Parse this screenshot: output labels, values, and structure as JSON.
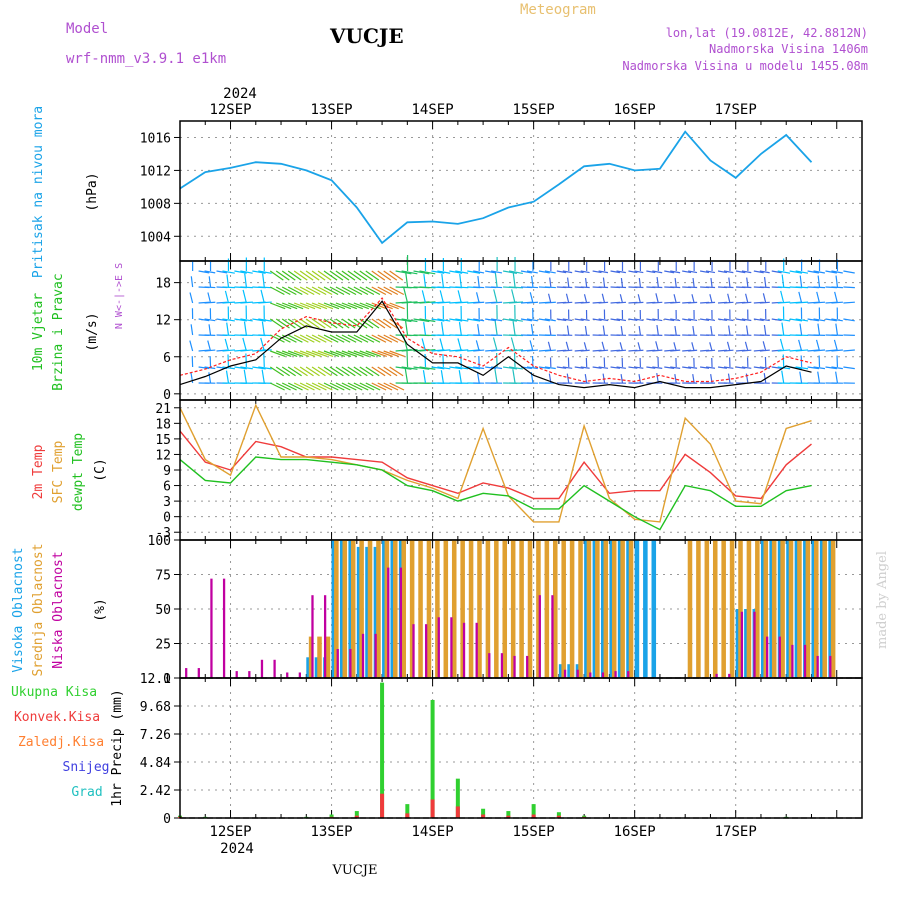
{
  "header": {
    "model_label": "Model",
    "model_name": "wrf-nmm_v3.9.1 e1km",
    "station": "VUCJE",
    "title": "Meteogram",
    "lonlat": "lon,lat (19.0812E, 42.8812N)",
    "altitude": "Nadmorska Visina 1406m",
    "model_altitude": "Nadmorska Visina u modelu 1455.08m",
    "footer_station": "VUCJE",
    "credit": "made by Angel"
  },
  "colors": {
    "pressure": "#1aa3e8",
    "speed": "#000000",
    "gust": "#ff2020",
    "t2m": "#ef3b3b",
    "tsfc": "#e0a030",
    "dewp": "#20c020",
    "cloud_high": "#1aa3e8",
    "cloud_mid": "#e0a030",
    "cloud_low": "#c000a0",
    "precip_total": "#30d030",
    "precip_conv": "#ef3b3b",
    "model_label": "#b050d0",
    "title": "#e8c070"
  },
  "chart_data": [
    {
      "type": "line",
      "name": "pressure",
      "ylabel_left": "Pritisak na nivou mora",
      "ylabel_unit": "(hPa)",
      "yticks": [
        "1004",
        "1008",
        "1012",
        "1016"
      ],
      "ylim": [
        1001,
        1018
      ],
      "x_days": [
        "12SEP",
        "13SEP",
        "14SEP",
        "15SEP",
        "16SEP",
        "17SEP"
      ],
      "top_year": "2024",
      "x_hours": [
        0,
        6,
        12,
        18,
        24,
        30,
        36,
        42,
        48,
        54,
        60,
        66,
        72,
        78,
        84,
        90,
        96,
        102,
        108,
        114,
        120,
        126,
        132,
        138,
        144,
        150
      ],
      "series": [
        {
          "values": [
            1009.8,
            1011.8,
            1012.3,
            1013.0,
            1012.8,
            1012.0,
            1010.8,
            1007.5,
            1003.2,
            1005.7,
            1005.8,
            1005.5,
            1006.2,
            1007.5,
            1008.2,
            1010.3,
            1012.5,
            1012.8,
            1012.0,
            1012.2,
            1016.7,
            1013.2,
            1011.1,
            1014.0,
            1016.3,
            1013.0
          ]
        }
      ]
    },
    {
      "type": "line",
      "name": "wind",
      "ylabel_left": "10m Vjetar Brzina i Pravac",
      "ylabel_unit": "(m/s)",
      "compass": "N  W<-|->E  S",
      "yticks": [
        "0",
        "6",
        "12",
        "18"
      ],
      "ylim": [
        -1,
        21.5
      ],
      "x_hours": [
        0,
        6,
        12,
        18,
        24,
        30,
        36,
        42,
        48,
        54,
        60,
        66,
        72,
        78,
        84,
        90,
        96,
        102,
        108,
        114,
        120,
        126,
        132,
        138,
        144,
        150
      ],
      "series": [
        {
          "values": [
            1.5,
            2.8,
            4.5,
            5.5,
            9,
            11,
            10,
            10,
            15,
            8,
            5,
            5,
            3,
            6,
            3,
            1.5,
            1,
            1.5,
            1,
            2,
            1,
            1,
            1.5,
            2,
            4.5,
            3.5
          ]
        },
        {
          "values": [
            3,
            4,
            5.5,
            6.5,
            10.5,
            12.5,
            11.5,
            11,
            15.5,
            9,
            6.5,
            6,
            4.5,
            7.5,
            4.5,
            3,
            2,
            2.5,
            2,
            3,
            2,
            2,
            2.5,
            3.5,
            6,
            5
          ]
        }
      ]
    },
    {
      "type": "line",
      "name": "temperature",
      "ylabel_left": "2m Temp SFC Temp dewpt Temp",
      "ylabel_unit": "(C)",
      "yticks": [
        "-3",
        "0",
        "3",
        "6",
        "9",
        "12",
        "15",
        "18",
        "21"
      ],
      "ylim": [
        -4.5,
        22.5
      ],
      "x_hours": [
        0,
        6,
        12,
        18,
        24,
        30,
        36,
        42,
        48,
        54,
        60,
        66,
        72,
        78,
        84,
        90,
        96,
        102,
        108,
        114,
        120,
        126,
        132,
        138,
        144,
        150
      ],
      "series": [
        {
          "values": [
            16.5,
            10.5,
            9,
            14.5,
            13.5,
            11.5,
            11.5,
            11,
            10.5,
            7.5,
            6,
            4.5,
            6.5,
            5.5,
            3.5,
            3.5,
            10.5,
            4.5,
            5,
            5,
            12,
            8.5,
            4,
            3.5,
            10,
            14
          ]
        },
        {
          "values": [
            21,
            11,
            8,
            21.5,
            11.5,
            11.5,
            11,
            10,
            9,
            7,
            5.5,
            3.5,
            17,
            4,
            -1,
            -1,
            17.5,
            3.5,
            -0.5,
            -1,
            19,
            14,
            3,
            2.5,
            17,
            18.5
          ]
        },
        {
          "values": [
            11,
            7,
            6.5,
            11.5,
            11,
            11,
            10.5,
            10,
            9,
            6,
            5,
            3,
            4.5,
            4,
            1.5,
            1.5,
            6,
            3,
            0,
            -2.5,
            6,
            5,
            2,
            2,
            5,
            6
          ]
        }
      ]
    },
    {
      "type": "bar",
      "name": "cloud",
      "ylabel_left": "Visoka Oblacnost Srednja Oblacnost Niska Oblacnost",
      "ylabel_unit": "(%)",
      "yticks": [
        "0",
        "25",
        "50",
        "75",
        "100"
      ],
      "ylim": [
        0,
        100
      ],
      "x_hours": [
        0,
        6,
        12,
        18,
        24,
        30,
        36,
        42,
        48,
        54,
        60,
        66,
        72,
        78,
        84,
        90,
        96,
        102,
        108,
        114,
        120,
        126,
        132,
        138,
        144,
        150
      ],
      "series": [
        {
          "values": [
            0,
            0,
            0,
            0,
            0,
            15,
            100,
            95,
            100,
            0,
            0,
            0,
            0,
            0,
            0,
            10,
            100,
            100,
            100,
            0,
            0,
            0,
            50,
            100,
            100,
            100
          ]
        },
        {
          "values": [
            0,
            0,
            0,
            0,
            0,
            30,
            100,
            100,
            100,
            100,
            100,
            100,
            100,
            100,
            100,
            100,
            100,
            100,
            0,
            0,
            100,
            100,
            100,
            100,
            100,
            100
          ]
        },
        {
          "values": [
            12,
            90,
            5,
            22,
            5,
            60,
            35,
            40,
            80,
            65,
            55,
            40,
            30,
            20,
            60,
            10,
            5,
            5,
            0,
            0,
            0,
            5,
            60,
            30,
            40,
            20
          ]
        }
      ]
    },
    {
      "type": "bar",
      "name": "precip",
      "ylabel_left": "1hr Precip",
      "ylabel_unit": "(mm)",
      "legend": [
        "Ukupna Kisa",
        "Konvek.Kisa",
        "Zaledj.Kisa",
        "Snijeg",
        "Grad"
      ],
      "yticks": [
        "0",
        "2.42",
        "4.84",
        "7.26",
        "9.68",
        "12.1"
      ],
      "ylim": [
        0,
        12.1
      ],
      "x_days_bottom": [
        "12SEP",
        "13SEP",
        "14SEP",
        "15SEP",
        "16SEP",
        "17SEP"
      ],
      "bottom_year": "2024",
      "x_hours": [
        0,
        6,
        12,
        18,
        24,
        30,
        36,
        42,
        48,
        54,
        60,
        66,
        72,
        78,
        84,
        90,
        96,
        102,
        108,
        114,
        120,
        126,
        132,
        138,
        144,
        150
      ],
      "series": [
        {
          "values": [
            0.2,
            0.1,
            0,
            0,
            0,
            0.1,
            0.3,
            0.6,
            11.7,
            1.2,
            10.2,
            3.4,
            0.8,
            0.6,
            1.2,
            0.5,
            0.2,
            0,
            0,
            0,
            0,
            0,
            0,
            0,
            0.1,
            0
          ]
        },
        {
          "values": [
            0.1,
            0,
            0,
            0,
            0,
            0,
            0.1,
            0.2,
            2.1,
            0.4,
            1.6,
            1.0,
            0.3,
            0.2,
            0.3,
            0.2,
            0.1,
            0,
            0,
            0,
            0,
            0,
            0,
            0,
            0,
            0
          ]
        }
      ]
    }
  ]
}
